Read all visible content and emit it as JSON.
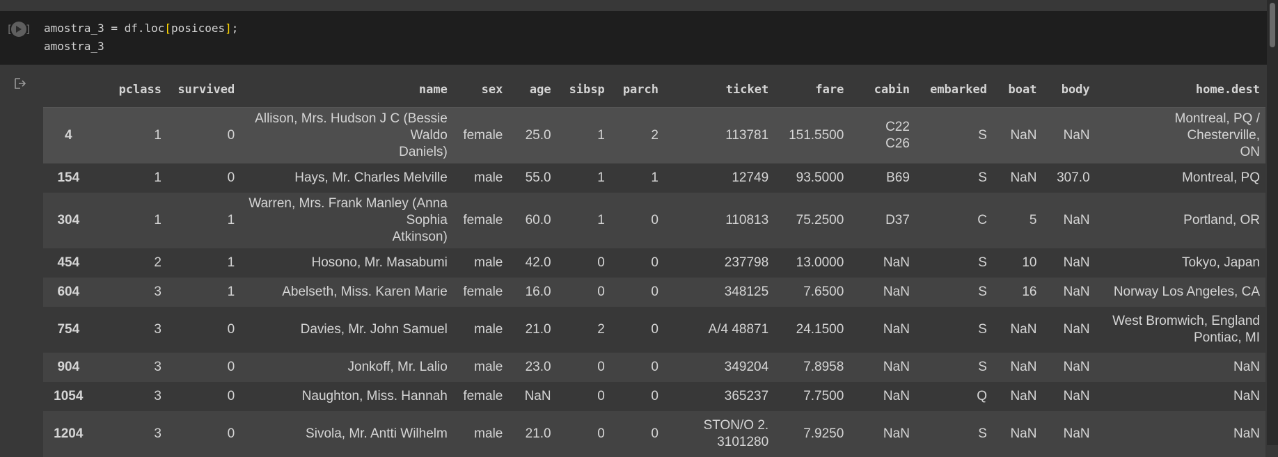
{
  "code_cell": {
    "exec_count": "[ ]",
    "line1_pre": "amostra_3 = df.loc",
    "line1_open": "[",
    "line1_mid": "posicoes",
    "line1_close": "]",
    "line1_post": ";",
    "line2": "amostra_3"
  },
  "table": {
    "columns": [
      "",
      "pclass",
      "survived",
      "name",
      "sex",
      "age",
      "sibsp",
      "parch",
      "ticket",
      "fare",
      "cabin",
      "embarked",
      "boat",
      "body",
      "home.dest"
    ],
    "rows": [
      {
        "index": "4",
        "pclass": "1",
        "survived": "0",
        "name_a": "Allison, Mrs. Hudson J C (Bessie Waldo",
        "name_b": "Daniels)",
        "sex": "female",
        "age": "25.0",
        "sibsp": "1",
        "parch": "2",
        "ticket_a": "113781",
        "ticket_b": "",
        "fare": "151.5500",
        "cabin_a": "C22",
        "cabin_b": "C26",
        "embarked": "S",
        "boat": "NaN",
        "body": "NaN",
        "dest_a": "Montreal, PQ / Chesterville,",
        "dest_b": "ON"
      },
      {
        "index": "154",
        "pclass": "1",
        "survived": "0",
        "name_a": "Hays, Mr. Charles Melville",
        "name_b": "",
        "sex": "male",
        "age": "55.0",
        "sibsp": "1",
        "parch": "1",
        "ticket_a": "12749",
        "ticket_b": "",
        "fare": "93.5000",
        "cabin_a": "B69",
        "cabin_b": "",
        "embarked": "S",
        "boat": "NaN",
        "body": "307.0",
        "dest_a": "Montreal, PQ",
        "dest_b": ""
      },
      {
        "index": "304",
        "pclass": "1",
        "survived": "1",
        "name_a": "Warren, Mrs. Frank Manley (Anna Sophia",
        "name_b": "Atkinson)",
        "sex": "female",
        "age": "60.0",
        "sibsp": "1",
        "parch": "0",
        "ticket_a": "110813",
        "ticket_b": "",
        "fare": "75.2500",
        "cabin_a": "D37",
        "cabin_b": "",
        "embarked": "C",
        "boat": "5",
        "body": "NaN",
        "dest_a": "Portland, OR",
        "dest_b": ""
      },
      {
        "index": "454",
        "pclass": "2",
        "survived": "1",
        "name_a": "Hosono, Mr. Masabumi",
        "name_b": "",
        "sex": "male",
        "age": "42.0",
        "sibsp": "0",
        "parch": "0",
        "ticket_a": "237798",
        "ticket_b": "",
        "fare": "13.0000",
        "cabin_a": "NaN",
        "cabin_b": "",
        "embarked": "S",
        "boat": "10",
        "body": "NaN",
        "dest_a": "Tokyo, Japan",
        "dest_b": ""
      },
      {
        "index": "604",
        "pclass": "3",
        "survived": "1",
        "name_a": "Abelseth, Miss. Karen Marie",
        "name_b": "",
        "sex": "female",
        "age": "16.0",
        "sibsp": "0",
        "parch": "0",
        "ticket_a": "348125",
        "ticket_b": "",
        "fare": "7.6500",
        "cabin_a": "NaN",
        "cabin_b": "",
        "embarked": "S",
        "boat": "16",
        "body": "NaN",
        "dest_a": "Norway Los Angeles, CA",
        "dest_b": ""
      },
      {
        "index": "754",
        "pclass": "3",
        "survived": "0",
        "name_a": "Davies, Mr. John Samuel",
        "name_b": "",
        "sex": "male",
        "age": "21.0",
        "sibsp": "2",
        "parch": "0",
        "ticket_a": "A/4 48871",
        "ticket_b": "",
        "fare": "24.1500",
        "cabin_a": "NaN",
        "cabin_b": "",
        "embarked": "S",
        "boat": "NaN",
        "body": "NaN",
        "dest_a": "West Bromwich, England",
        "dest_b": "Pontiac, MI"
      },
      {
        "index": "904",
        "pclass": "3",
        "survived": "0",
        "name_a": "Jonkoff, Mr. Lalio",
        "name_b": "",
        "sex": "male",
        "age": "23.0",
        "sibsp": "0",
        "parch": "0",
        "ticket_a": "349204",
        "ticket_b": "",
        "fare": "7.8958",
        "cabin_a": "NaN",
        "cabin_b": "",
        "embarked": "S",
        "boat": "NaN",
        "body": "NaN",
        "dest_a": "NaN",
        "dest_b": ""
      },
      {
        "index": "1054",
        "pclass": "3",
        "survived": "0",
        "name_a": "Naughton, Miss. Hannah",
        "name_b": "",
        "sex": "female",
        "age": "NaN",
        "sibsp": "0",
        "parch": "0",
        "ticket_a": "365237",
        "ticket_b": "",
        "fare": "7.7500",
        "cabin_a": "NaN",
        "cabin_b": "",
        "embarked": "Q",
        "boat": "NaN",
        "body": "NaN",
        "dest_a": "NaN",
        "dest_b": ""
      },
      {
        "index": "1204",
        "pclass": "3",
        "survived": "0",
        "name_a": "Sivola, Mr. Antti Wilhelm",
        "name_b": "",
        "sex": "male",
        "age": "21.0",
        "sibsp": "0",
        "parch": "0",
        "ticket_a": "STON/O 2.",
        "ticket_b": "3101280",
        "fare": "7.9250",
        "cabin_a": "NaN",
        "cabin_b": "",
        "embarked": "S",
        "boat": "NaN",
        "body": "NaN",
        "dest_a": "NaN",
        "dest_b": ""
      }
    ]
  }
}
